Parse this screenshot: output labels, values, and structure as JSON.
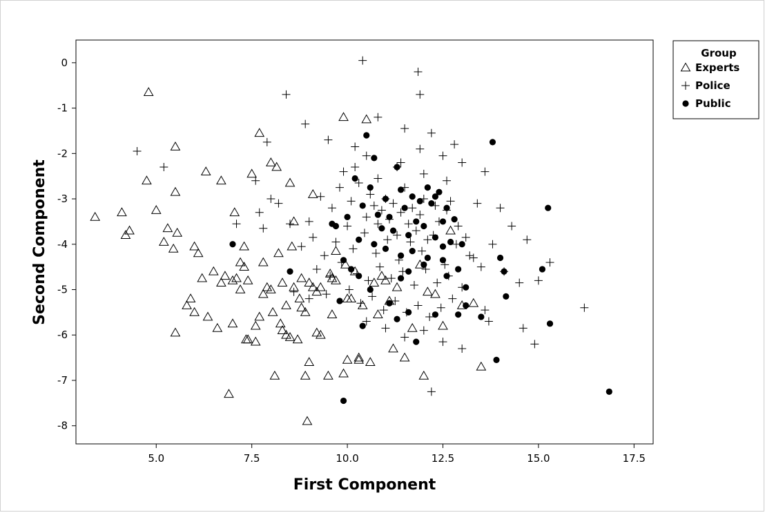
{
  "chart_data": {
    "type": "scatter",
    "title": "",
    "xlabel": "First Component",
    "ylabel": "Second Component",
    "xlim": [
      2.9,
      18.0
    ],
    "ylim": [
      -8.4,
      0.5
    ],
    "xticks": [
      5.0,
      7.5,
      10.0,
      12.5,
      15.0,
      17.5
    ],
    "xtick_labels": [
      "5.0",
      "7.5",
      "10.0",
      "12.5",
      "15.0",
      "17.5"
    ],
    "yticks": [
      0,
      -1,
      -2,
      -3,
      -4,
      -5,
      -6,
      -7,
      -8
    ],
    "ytick_labels": [
      "0",
      "-1",
      "-2",
      "-3",
      "-4",
      "-5",
      "-6",
      "-7",
      "-8"
    ],
    "grid": false,
    "legend": {
      "title": "Group",
      "placement": "right"
    },
    "series": [
      {
        "name": "Experts",
        "marker": "triangle-open",
        "x": [
          3.4,
          4.1,
          4.2,
          4.3,
          4.8,
          4.75,
          5.0,
          5.2,
          5.3,
          5.45,
          5.5,
          5.5,
          5.55,
          5.5,
          5.8,
          5.9,
          6.0,
          6.1,
          6.2,
          6.3,
          6.35,
          6.5,
          6.6,
          6.7,
          6.7,
          6.8,
          6.9,
          7.0,
          7.05,
          7.1,
          7.2,
          7.3,
          7.35,
          7.4,
          7.5,
          7.6,
          7.7,
          7.8,
          7.9,
          8.0,
          8.05,
          8.1,
          8.15,
          8.2,
          8.3,
          8.4,
          8.5,
          8.55,
          8.6,
          8.7,
          8.8,
          8.9,
          8.95,
          9.0,
          9.1,
          9.2,
          9.3,
          9.5,
          9.6,
          9.7,
          9.9,
          10.0,
          10.1,
          10.3,
          10.5,
          10.6,
          10.8,
          11.0,
          11.2,
          11.5,
          11.9,
          12.0,
          12.3,
          12.5,
          12.7,
          13.0,
          13.3,
          13.5,
          6.0,
          7.4,
          7.6,
          8.0,
          8.25,
          8.5,
          8.8,
          9.1,
          9.9,
          10.3,
          7.7,
          8.4,
          8.9,
          9.3,
          9.6,
          10.0,
          10.4,
          10.9,
          11.3,
          11.7,
          12.1,
          7.2,
          7.8,
          8.3,
          8.75,
          9.2,
          9.55,
          9.95,
          10.7,
          11.1,
          7.0,
          7.3,
          8.6,
          9.0,
          9.7,
          10.2
        ],
        "y": [
          -3.4,
          -3.3,
          -3.8,
          -3.7,
          -0.65,
          -2.6,
          -3.25,
          -3.95,
          -3.65,
          -4.1,
          -1.85,
          -2.85,
          -3.75,
          -5.95,
          -5.35,
          -5.2,
          -4.05,
          -4.2,
          -4.75,
          -2.4,
          -5.6,
          -4.6,
          -5.85,
          -2.6,
          -4.85,
          -4.7,
          -7.3,
          -5.75,
          -3.3,
          -4.75,
          -5.0,
          -4.5,
          -6.1,
          -4.8,
          -2.45,
          -5.8,
          -1.55,
          -4.4,
          -4.95,
          -2.2,
          -5.5,
          -6.9,
          -2.3,
          -4.2,
          -5.9,
          -6.0,
          -2.65,
          -4.05,
          -3.5,
          -6.1,
          -4.75,
          -6.9,
          -7.9,
          -6.6,
          -2.9,
          -5.05,
          -6.0,
          -6.9,
          -5.55,
          -4.8,
          -1.2,
          -6.55,
          -5.2,
          -6.5,
          -1.25,
          -6.6,
          -5.55,
          -4.8,
          -6.3,
          -6.5,
          -4.45,
          -6.9,
          -5.1,
          -5.8,
          -3.7,
          -5.35,
          -5.3,
          -6.7,
          -5.5,
          -6.1,
          -6.15,
          -5.0,
          -5.75,
          -6.05,
          -5.4,
          -4.95,
          -6.85,
          -6.55,
          -5.6,
          -5.35,
          -5.5,
          -4.95,
          -4.75,
          -5.2,
          -5.35,
          -4.7,
          -4.95,
          -5.85,
          -5.05,
          -4.4,
          -5.1,
          -4.85,
          -5.2,
          -5.95,
          -4.65,
          -4.45,
          -4.85,
          -5.25,
          -4.8,
          -4.05,
          -4.95,
          -4.85,
          -4.15,
          -4.6
        ]
      },
      {
        "name": "Police",
        "marker": "plus",
        "x": [
          10.4,
          11.85,
          11.9,
          4.5,
          5.2,
          7.1,
          7.6,
          7.9,
          8.0,
          8.4,
          8.9,
          9.5,
          9.9,
          10.2,
          10.5,
          10.8,
          11.3,
          11.5,
          11.9,
          12.2,
          12.5,
          12.8,
          13.0,
          13.4,
          13.6,
          14.0,
          14.3,
          14.5,
          14.7,
          15.0,
          15.3,
          16.2,
          14.9,
          14.6,
          13.7,
          12.2,
          7.7,
          7.8,
          8.2,
          8.5,
          9.0,
          9.3,
          9.6,
          9.8,
          10.0,
          10.1,
          10.3,
          10.5,
          10.6,
          10.7,
          10.8,
          10.9,
          11.0,
          11.1,
          11.2,
          11.3,
          11.4,
          11.5,
          11.6,
          11.7,
          11.8,
          11.9,
          12.0,
          12.1,
          12.3,
          12.4,
          12.6,
          12.7,
          12.9,
          13.1,
          13.3,
          8.8,
          9.1,
          9.4,
          9.7,
          10.15,
          10.45,
          10.75,
          11.05,
          11.35,
          11.65,
          11.95,
          12.25,
          12.55,
          12.85,
          13.2,
          13.5,
          9.2,
          9.55,
          9.85,
          10.25,
          10.55,
          10.85,
          11.15,
          11.45,
          11.75,
          12.05,
          12.35,
          12.65,
          13.0,
          8.6,
          9.0,
          9.45,
          10.05,
          10.35,
          10.65,
          10.95,
          11.25,
          11.55,
          11.85,
          12.15,
          12.45,
          12.75,
          13.6,
          10.5,
          11.0,
          11.5,
          12.0,
          12.5,
          13.0,
          10.2,
          10.8,
          11.4,
          12.0,
          12.6,
          13.8,
          14.1
        ],
        "y": [
          0.05,
          -0.2,
          -0.7,
          -1.95,
          -2.3,
          -3.55,
          -2.6,
          -1.75,
          -3.0,
          -0.7,
          -1.35,
          -1.7,
          -2.4,
          -1.85,
          -2.05,
          -1.2,
          -2.3,
          -1.45,
          -1.9,
          -1.55,
          -2.05,
          -1.8,
          -2.2,
          -3.1,
          -2.4,
          -3.2,
          -3.6,
          -4.85,
          -3.9,
          -4.8,
          -4.4,
          -5.4,
          -6.2,
          -5.85,
          -5.7,
          -7.25,
          -3.3,
          -3.65,
          -3.1,
          -3.55,
          -3.5,
          -2.95,
          -3.2,
          -2.75,
          -3.6,
          -3.05,
          -2.65,
          -3.4,
          -2.9,
          -3.15,
          -3.55,
          -3.25,
          -3.0,
          -3.45,
          -3.1,
          -3.8,
          -3.3,
          -2.75,
          -3.55,
          -3.2,
          -3.7,
          -3.35,
          -3.0,
          -3.9,
          -3.15,
          -3.5,
          -3.25,
          -3.05,
          -3.6,
          -3.85,
          -4.3,
          -4.05,
          -3.85,
          -4.25,
          -3.95,
          -4.1,
          -3.75,
          -4.2,
          -3.9,
          -4.35,
          -3.95,
          -4.15,
          -3.8,
          -4.45,
          -4.0,
          -4.25,
          -4.5,
          -4.55,
          -4.7,
          -4.4,
          -4.65,
          -4.8,
          -4.5,
          -4.75,
          -4.6,
          -4.9,
          -4.55,
          -4.85,
          -4.7,
          -4.95,
          -5.05,
          -5.2,
          -5.1,
          -5.0,
          -5.3,
          -5.15,
          -5.45,
          -5.25,
          -5.5,
          -5.35,
          -5.6,
          -5.4,
          -5.2,
          -5.45,
          -5.7,
          -5.85,
          -6.05,
          -5.9,
          -6.15,
          -6.3,
          -2.3,
          -2.55,
          -2.2,
          -2.45,
          -2.6,
          -4.0,
          -4.6
        ]
      },
      {
        "name": "Public",
        "marker": "circle-filled",
        "x": [
          10.5,
          10.7,
          11.3,
          13.8,
          12.3,
          10.2,
          10.6,
          11.0,
          11.4,
          11.7,
          11.9,
          12.1,
          12.4,
          12.6,
          12.8,
          10.4,
          10.8,
          11.1,
          11.5,
          11.8,
          12.2,
          12.5,
          10.9,
          11.2,
          11.6,
          12.0,
          12.3,
          12.7,
          13.0,
          10.3,
          10.7,
          11.0,
          11.4,
          11.7,
          12.1,
          12.5,
          12.9,
          9.7,
          9.9,
          10.1,
          10.0,
          10.3,
          11.4,
          11.6,
          12.0,
          12.6,
          13.1,
          13.5,
          14.0,
          14.1,
          14.15,
          15.1,
          15.25,
          15.3,
          13.9,
          16.85,
          9.9,
          7.0,
          8.5,
          9.6,
          13.1,
          11.8,
          11.1,
          10.6,
          9.8,
          10.4,
          11.3,
          11.6,
          12.3,
          12.9,
          12.5
        ],
        "y": [
          -1.6,
          -2.1,
          -2.3,
          -1.75,
          -2.95,
          -2.55,
          -2.75,
          -3.0,
          -2.8,
          -2.95,
          -3.05,
          -2.75,
          -2.85,
          -3.2,
          -3.45,
          -3.15,
          -3.35,
          -3.4,
          -3.2,
          -3.5,
          -3.1,
          -3.5,
          -3.65,
          -3.7,
          -3.8,
          -3.6,
          -3.85,
          -3.95,
          -4.0,
          -3.9,
          -4.0,
          -4.1,
          -4.25,
          -4.15,
          -4.3,
          -4.35,
          -4.55,
          -3.6,
          -4.35,
          -4.55,
          -3.4,
          -4.7,
          -4.75,
          -4.6,
          -4.45,
          -4.7,
          -4.95,
          -5.6,
          -4.3,
          -4.6,
          -5.15,
          -4.55,
          -3.2,
          -5.75,
          -6.55,
          -7.25,
          -7.45,
          -4.0,
          -4.6,
          -3.55,
          -5.35,
          -6.15,
          -5.3,
          -5.0,
          -5.25,
          -5.8,
          -5.65,
          -5.5,
          -5.55,
          -5.55,
          -4.05
        ]
      }
    ]
  }
}
